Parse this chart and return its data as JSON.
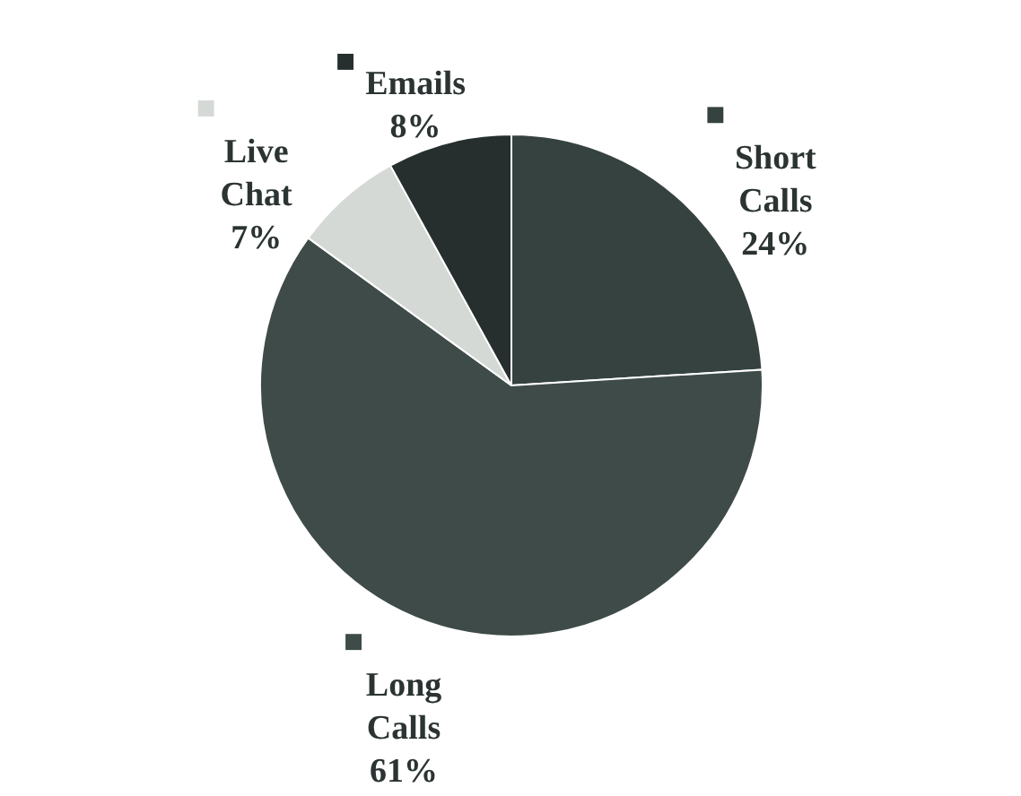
{
  "chart_data": {
    "type": "pie",
    "categories": [
      "Short Calls",
      "Long Calls",
      "Live Chat",
      "Emails"
    ],
    "values": [
      24,
      61,
      7,
      8
    ],
    "value_labels": [
      "24%",
      "61%",
      "7%",
      "8%"
    ],
    "colors": [
      "#36423f",
      "#3e4b49",
      "#d5d9d5",
      "#262f2e"
    ],
    "legend": true
  }
}
